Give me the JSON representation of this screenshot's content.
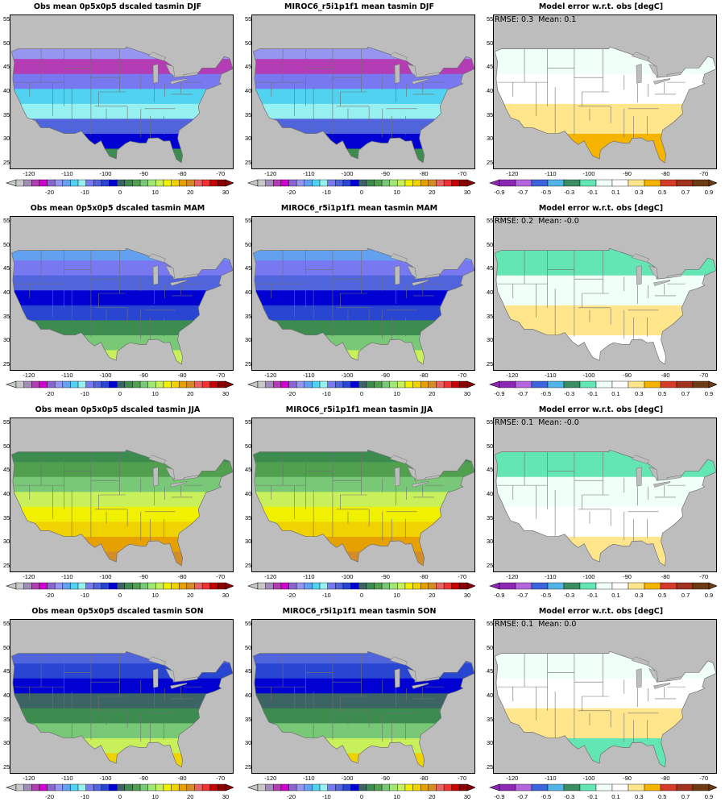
{
  "seasons": [
    "DJF",
    "MAM",
    "JJA",
    "SON"
  ],
  "lat_ticks": [
    "55",
    "50",
    "45",
    "40",
    "35",
    "30",
    "25"
  ],
  "lon_ticks": [
    "-120",
    "-110",
    "-100",
    "-90",
    "-80",
    "-70"
  ],
  "temp_colorbar": {
    "tick_labels": [
      "-20",
      "-10",
      "0",
      "10",
      "20",
      "30"
    ],
    "colors": [
      "#c8c8c8",
      "#a08cb4",
      "#b43cb4",
      "#d200d2",
      "#8c64d2",
      "#9696f0",
      "#64a0f0",
      "#50d2f0",
      "#96f0f0",
      "#7878f0",
      "#5064dc",
      "#2846d2",
      "#0000d2",
      "#3c6464",
      "#3c8c50",
      "#50a050",
      "#78c878",
      "#a0e678",
      "#c8f05a",
      "#f0f000",
      "#f0d200",
      "#e6a000",
      "#d28c28",
      "#e66464",
      "#f03232",
      "#c80000",
      "#8c0000"
    ]
  },
  "err_colorbar": {
    "tick_labels": [
      "-0.9",
      "-0.7",
      "-0.5",
      "-0.3",
      "-0.1",
      "0.1",
      "0.3",
      "0.5",
      "0.7",
      "0.9"
    ],
    "colors": [
      "#8c28b4",
      "#b464dc",
      "#3c64dc",
      "#50b4e6",
      "#3c8c64",
      "#64e6b4",
      "#f0fff8",
      "#ffffff",
      "#ffe68c",
      "#f5b400",
      "#d23c28",
      "#a0321e",
      "#6e3c14"
    ]
  },
  "rows": [
    {
      "obs_title": "Obs mean 0p5x0p5 dscaled tasmin DJF",
      "model_title": "MIROC6_r5i1p1f1 mean tasmin DJF",
      "err_title": "Model error w.r.t. obs [degC]",
      "stats": "RMSE: 0.3  Mean: 0.1",
      "obs_bands": [
        "#9696f0",
        "#b43cb4",
        "#7878f0",
        "#50d2f0",
        "#96f0f0",
        "#5064dc",
        "#0000d2",
        "#3c8c50"
      ],
      "err_bands": [
        "#f0fff8",
        "#ffffff",
        "#ffe68c",
        "#f5b400"
      ]
    },
    {
      "obs_title": "Obs mean 0p5x0p5 dscaled tasmin MAM",
      "model_title": "MIROC6_r5i1p1f1 mean tasmin MAM",
      "err_title": "Model error w.r.t. obs [degC]",
      "stats": "RMSE: 0.2  Mean: -0.0",
      "obs_bands": [
        "#64a0f0",
        "#7878f0",
        "#5064dc",
        "#0000d2",
        "#2846d2",
        "#3c8c50",
        "#78c878",
        "#c8f05a"
      ],
      "err_bands": [
        "#64e6b4",
        "#f0fff8",
        "#ffe68c",
        "#ffffff"
      ]
    },
    {
      "obs_title": "Obs mean 0p5x0p5 dscaled tasmin JJA",
      "model_title": "MIROC6_r5i1p1f1 mean tasmin JJA",
      "err_title": "Model error w.r.t. obs [degC]",
      "stats": "RMSE: 0.1  Mean: -0.0",
      "obs_bands": [
        "#3c8c50",
        "#50a050",
        "#78c878",
        "#c8f05a",
        "#f0f000",
        "#f0d200",
        "#e6a000",
        "#d28c28"
      ],
      "err_bands": [
        "#64e6b4",
        "#f0fff8",
        "#ffffff",
        "#ffe68c"
      ]
    },
    {
      "obs_title": "Obs mean 0p5x0p5 dscaled tasmin SON",
      "model_title": "MIROC6_r5i1p1f1 mean tasmin SON",
      "err_title": "Model error w.r.t. obs [degC]",
      "stats": "RMSE: 0.1  Mean: 0.0",
      "obs_bands": [
        "#5064dc",
        "#2846d2",
        "#0000d2",
        "#3c6464",
        "#3c8c50",
        "#78c878",
        "#c8f05a",
        "#f0d200"
      ],
      "err_bands": [
        "#f0fff8",
        "#ffffff",
        "#ffe68c",
        "#64e6b4"
      ]
    }
  ]
}
